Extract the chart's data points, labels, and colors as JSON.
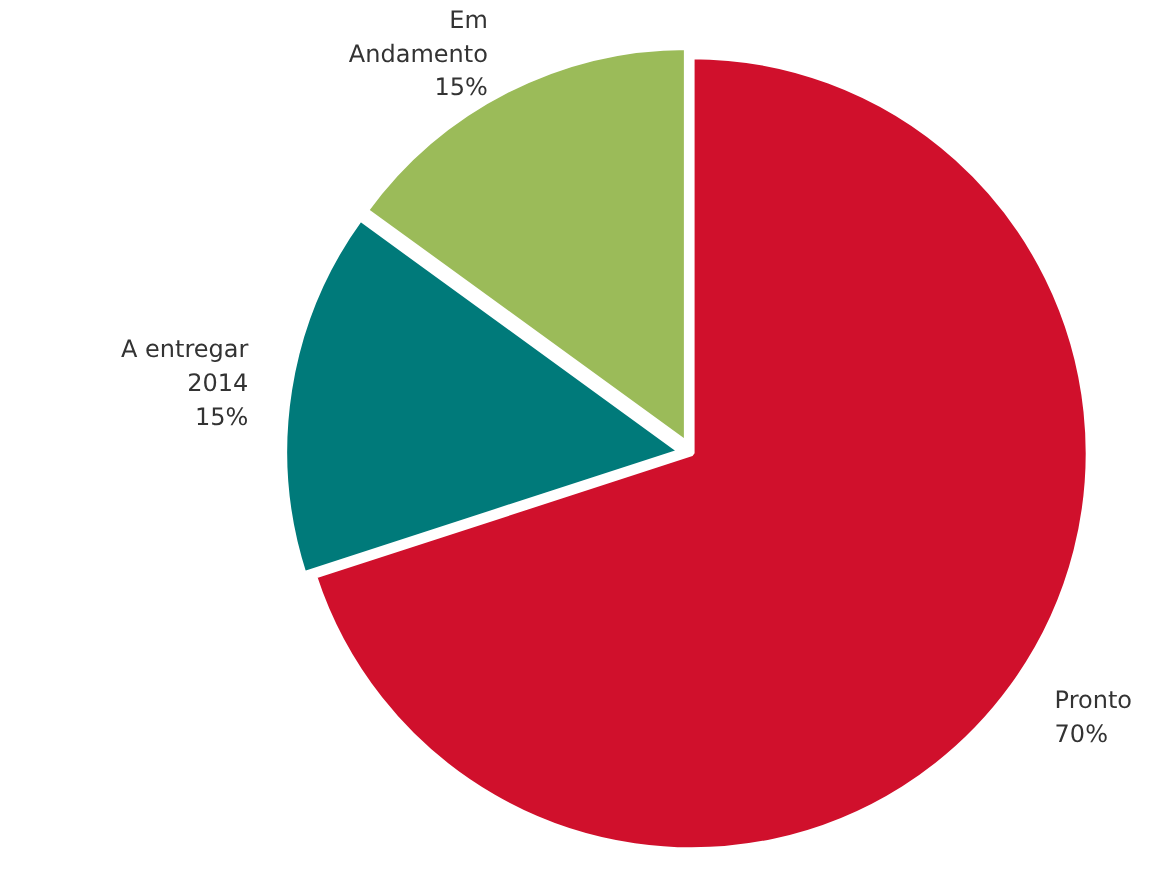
{
  "chart_data": {
    "type": "pie",
    "categories": [
      "Pronto",
      "A entregar 2014",
      "Em Andamento"
    ],
    "values": [
      70,
      15,
      15
    ],
    "colors": [
      "#d0102c",
      "#007a7a",
      "#9bbb59"
    ],
    "value_labels": [
      "70%",
      "15%",
      "15%"
    ]
  }
}
